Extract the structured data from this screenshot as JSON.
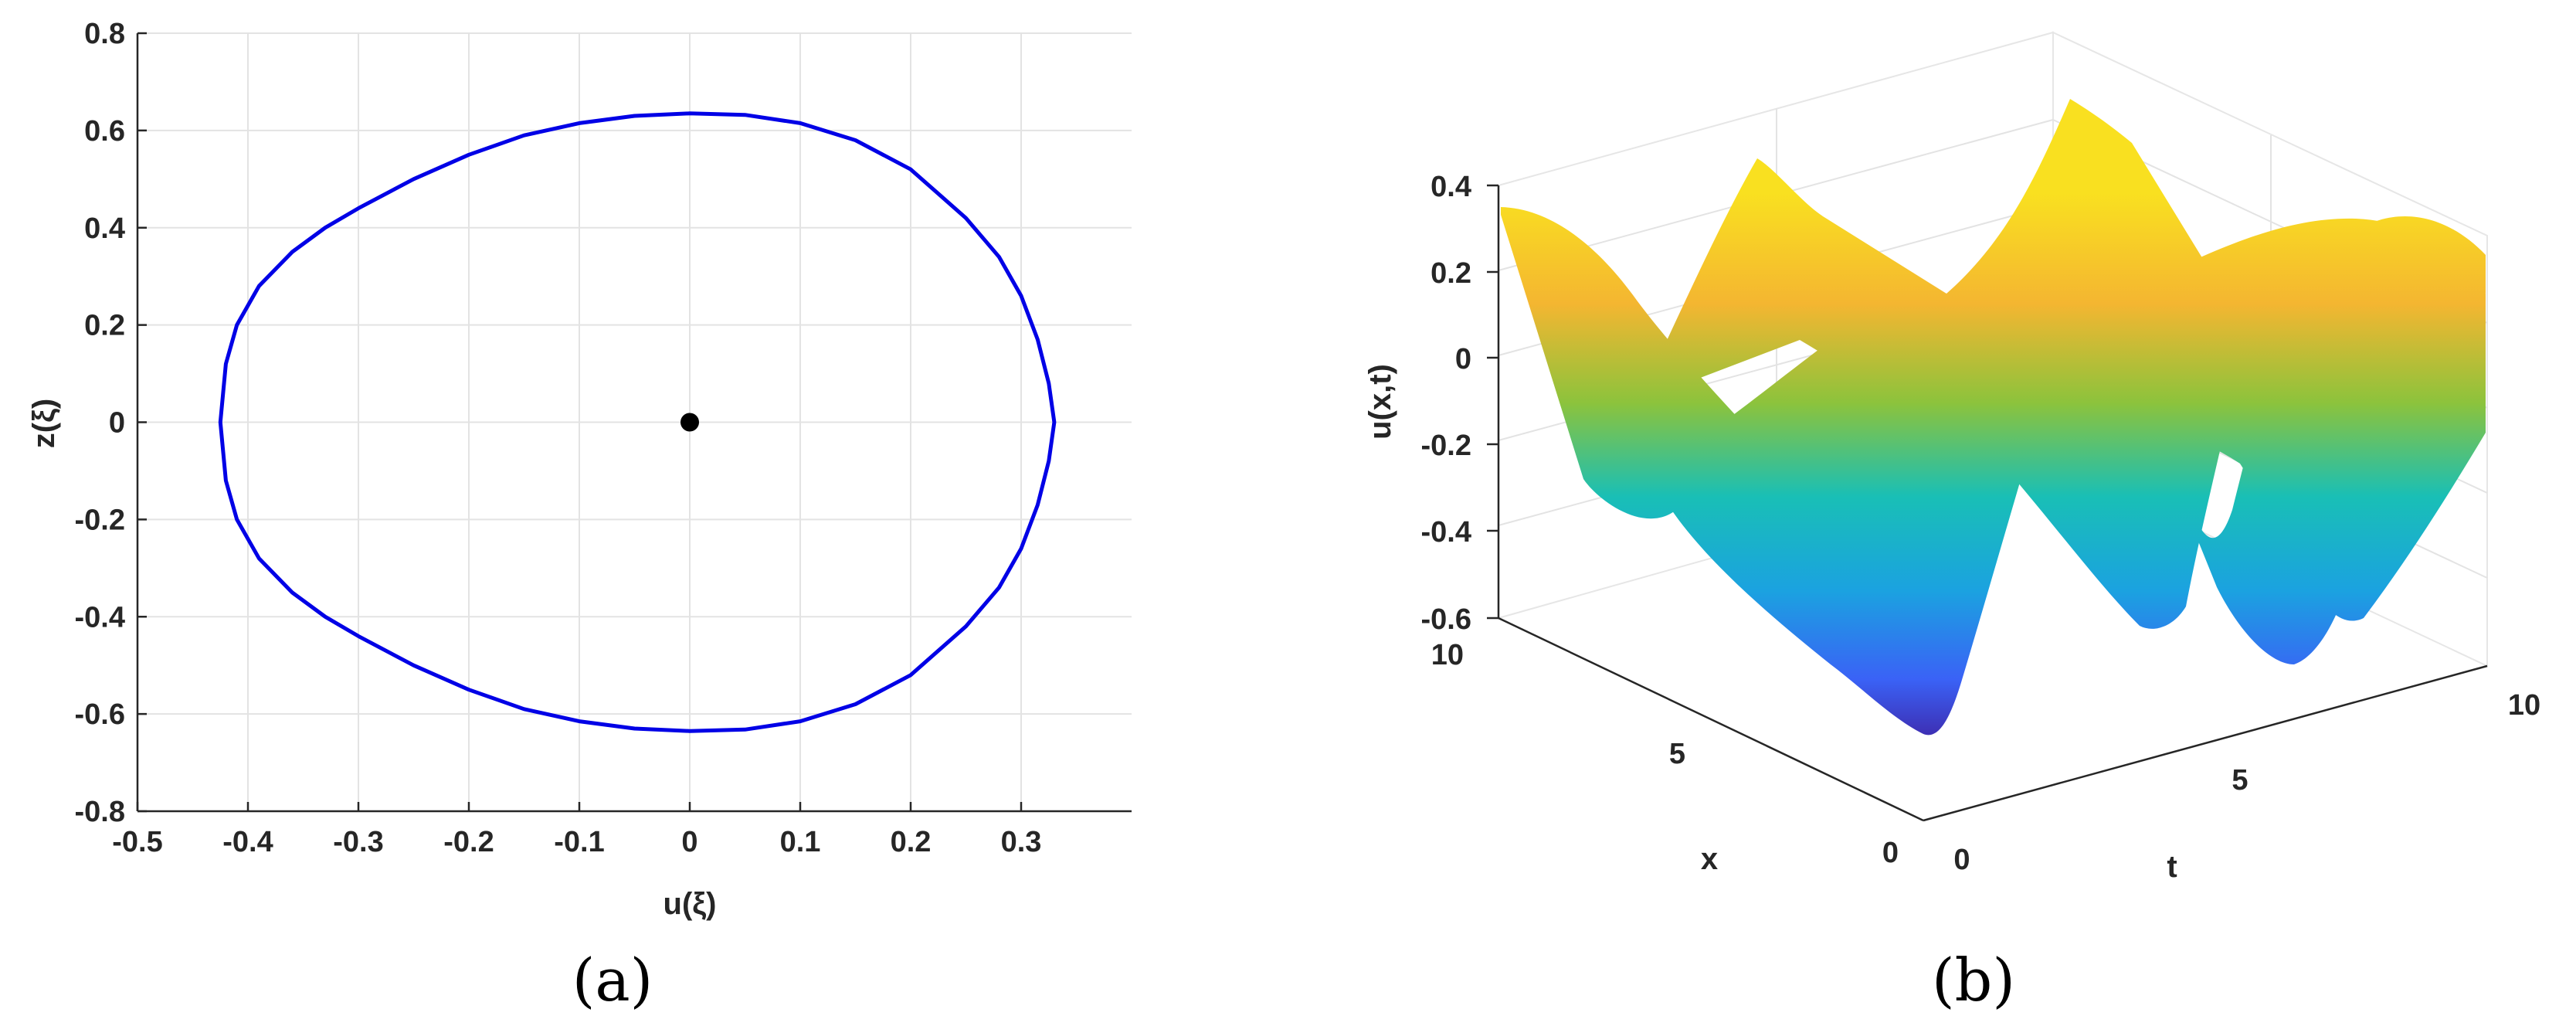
{
  "chart_data": [
    {
      "type": "line",
      "panel_label": "(a)",
      "xlabel": "u(ξ)",
      "ylabel": "z(ξ)",
      "xlim": [
        -0.5,
        0.4
      ],
      "ylim": [
        -0.8,
        0.8
      ],
      "xticks": [
        "-0.5",
        "-0.4",
        "-0.3",
        "-0.2",
        "-0.1",
        "0",
        "0.1",
        "0.2",
        "0.3"
      ],
      "yticks": [
        "-0.8",
        "-0.6",
        "-0.4",
        "-0.2",
        "0",
        "0.2",
        "0.4",
        "0.6",
        "0.8"
      ],
      "grid": true,
      "series": [
        {
          "color": "#0000e6",
          "x": [
            -0.425,
            -0.42,
            -0.41,
            -0.39,
            -0.36,
            -0.33,
            -0.3,
            -0.25,
            -0.2,
            -0.15,
            -0.1,
            -0.05,
            0,
            0.05,
            0.1,
            0.15,
            0.2,
            0.25,
            0.28,
            0.3,
            0.315,
            0.325,
            0.33,
            0.325,
            0.315,
            0.3,
            0.28,
            0.25,
            0.2,
            0.15,
            0.1,
            0.05,
            0,
            -0.05,
            -0.1,
            -0.15,
            -0.2,
            -0.25,
            -0.3,
            -0.33,
            -0.36,
            -0.39,
            -0.41,
            -0.42,
            -0.425
          ],
          "y": [
            0,
            0.12,
            0.2,
            0.28,
            0.35,
            0.4,
            0.44,
            0.5,
            0.55,
            0.59,
            0.615,
            0.63,
            0.635,
            0.632,
            0.615,
            0.58,
            0.52,
            0.42,
            0.34,
            0.26,
            0.17,
            0.08,
            0,
            -0.08,
            -0.17,
            -0.26,
            -0.34,
            -0.42,
            -0.52,
            -0.58,
            -0.615,
            -0.632,
            -0.635,
            -0.63,
            -0.615,
            -0.59,
            -0.55,
            -0.5,
            -0.44,
            -0.4,
            -0.35,
            -0.28,
            -0.2,
            -0.12,
            0
          ]
        },
        {
          "color": "#000000",
          "marker": "dot",
          "x": [
            0
          ],
          "y": [
            0
          ]
        }
      ]
    },
    {
      "type": "surface",
      "panel_label": "(b)",
      "xlabel": "t",
      "ylabel": "x",
      "zlabel": "u(x,t)",
      "xticks": [
        "0",
        "5",
        "10"
      ],
      "yticks": [
        "0",
        "5",
        "10"
      ],
      "zticks": [
        "-0.6",
        "-0.4",
        "-0.2",
        "0",
        "0.2",
        "0.4"
      ],
      "zlim": [
        -0.6,
        0.4
      ],
      "colormap": "parula",
      "colormap_stops": [
        "#3e26a8",
        "#3a62f6",
        "#1ba2e0",
        "#19bfb6",
        "#8cc33c",
        "#f4b631",
        "#f9e020"
      ]
    }
  ]
}
